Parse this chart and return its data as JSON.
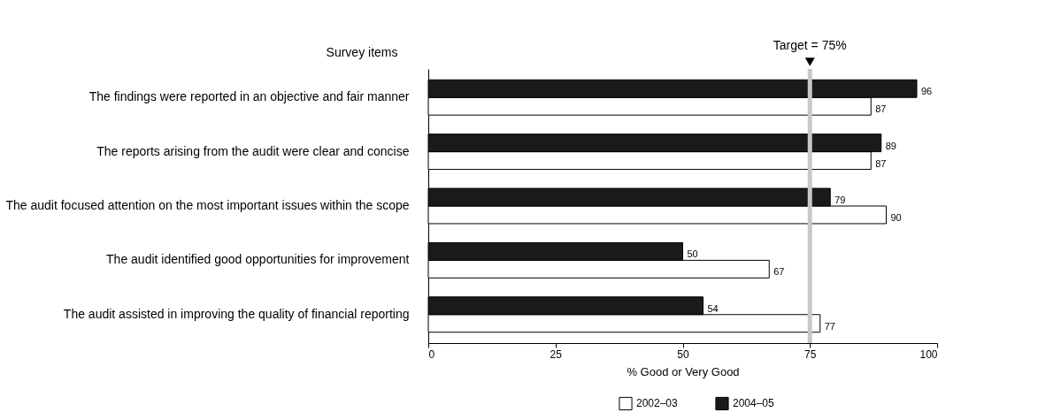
{
  "chart_data": {
    "type": "bar",
    "orientation": "horizontal",
    "ylabel": "Survey items",
    "xlabel": "% Good or Very Good",
    "categories": [
      "The findings were reported in an objective and fair manner",
      "The reports arising from the audit were clear and concise",
      "The audit focused attention on the most important issues within the scope",
      "The audit identified good opportunities for improvement",
      "The audit assisted in improving the quality of financial reporting"
    ],
    "series": [
      {
        "name": "2002–03",
        "color": "#ffffff",
        "values": [
          87,
          87,
          90,
          67,
          77
        ]
      },
      {
        "name": "2004–05",
        "color": "#1a1a1a",
        "values": [
          96,
          89,
          79,
          50,
          54
        ]
      }
    ],
    "xlim": [
      0,
      100
    ],
    "xticks": [
      0,
      25,
      50,
      75,
      100
    ],
    "grid": false,
    "legend": "bottom",
    "data_labels": true,
    "ref_lines": [
      {
        "axis": "x",
        "value": 75,
        "label": "Target = 75%",
        "color": "#c8c8c8"
      }
    ]
  }
}
